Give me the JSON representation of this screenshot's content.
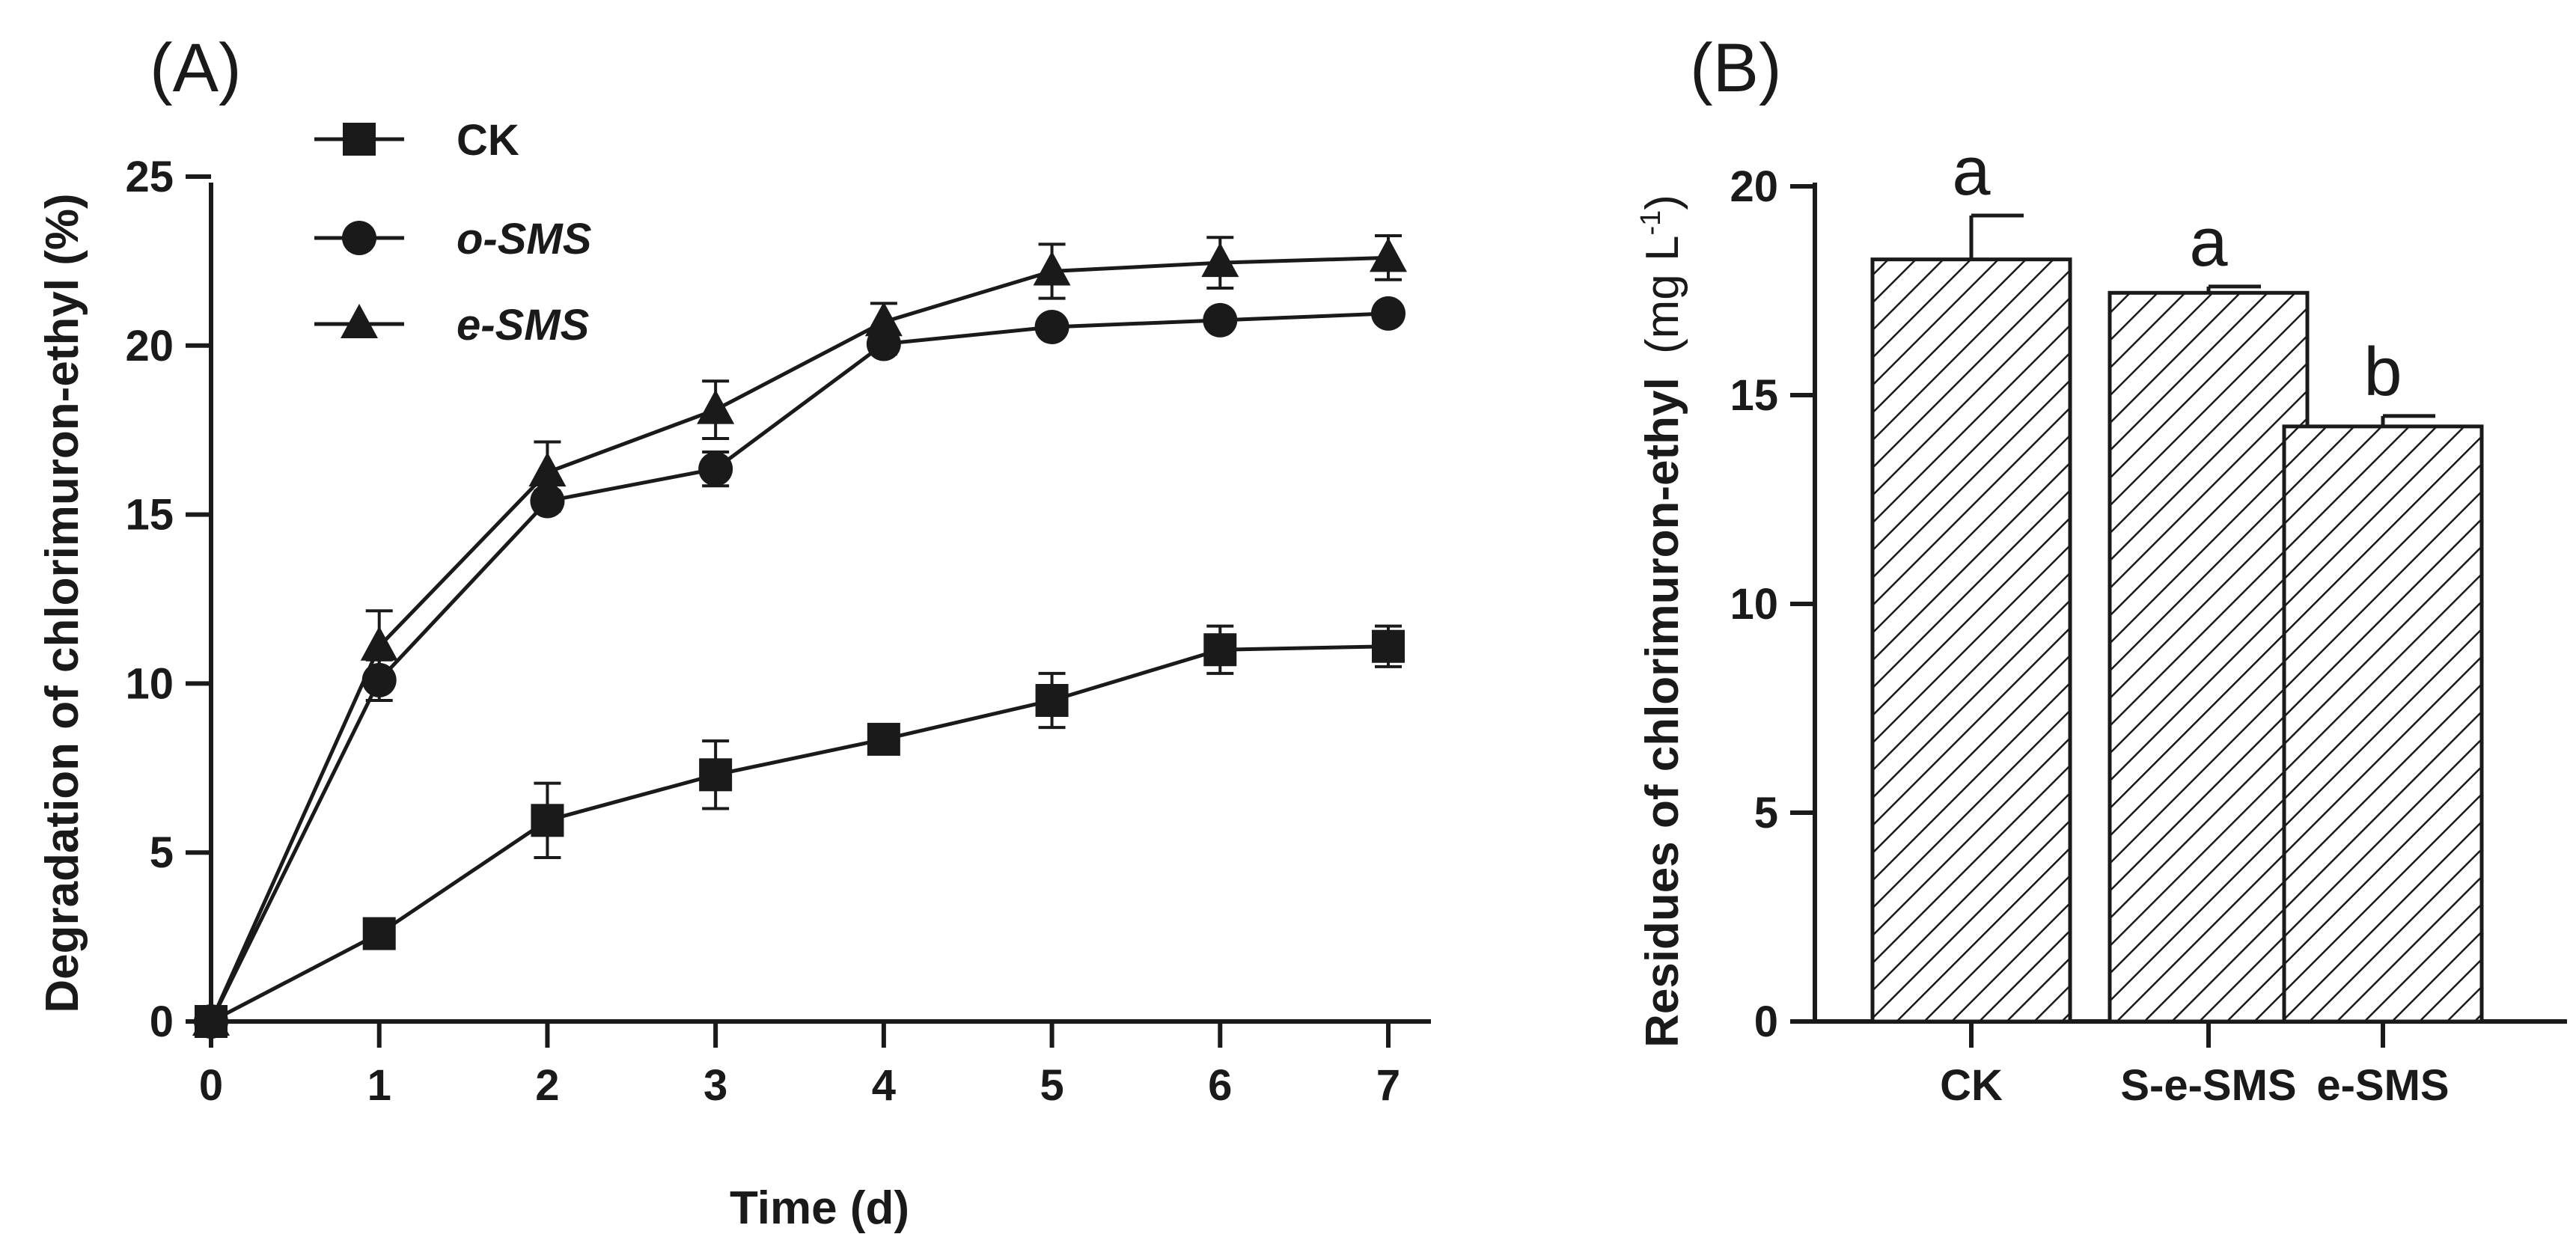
{
  "chart_data": [
    {
      "panel_label": "(A)",
      "type": "line",
      "xlabel": "Time (d)",
      "ylabel": "Degradation of chlorimuron-ethyl (%)",
      "xlim": [
        0,
        7
      ],
      "ylim": [
        0,
        25
      ],
      "x_ticks": [
        0,
        1,
        2,
        3,
        4,
        5,
        6,
        7
      ],
      "y_ticks": [
        0,
        5,
        10,
        15,
        20,
        25
      ],
      "grid": false,
      "legend_position": "top-left",
      "x": [
        0,
        1,
        2,
        3,
        4,
        5,
        6,
        7
      ],
      "series": [
        {
          "name": "CK",
          "italic": false,
          "marker": "square",
          "values": [
            0,
            2.6,
            5.95,
            7.3,
            8.35,
            9.5,
            11.0,
            11.1
          ],
          "errors": [
            0,
            0.2,
            1.1,
            1.0,
            0.3,
            0.8,
            0.7,
            0.6
          ]
        },
        {
          "name": "o-SMS",
          "italic": true,
          "marker": "circle",
          "values": [
            0,
            10.1,
            15.4,
            16.35,
            20.05,
            20.55,
            20.75,
            20.95
          ],
          "errors": [
            0,
            0.6,
            0.3,
            0.5,
            0.3,
            0.2,
            0.2,
            0.2
          ]
        },
        {
          "name": "e-SMS",
          "italic": true,
          "marker": "triangle",
          "values": [
            0,
            11.1,
            16.25,
            18.1,
            20.7,
            22.2,
            22.45,
            22.6
          ],
          "errors": [
            0,
            1.05,
            0.9,
            0.85,
            0.55,
            0.8,
            0.75,
            0.65
          ]
        }
      ]
    },
    {
      "panel_label": "(B)",
      "type": "bar",
      "xlabel": "",
      "ylabel_main": "Residues of chlorimuron-ethyl",
      "ylabel_unit_prefix": "(mg L",
      "ylabel_unit_exp": "-1",
      "ylabel_unit_suffix": ")",
      "ylim": [
        0,
        20
      ],
      "y_ticks": [
        0,
        5,
        10,
        15,
        20
      ],
      "grid": false,
      "fill": "diagonal-hatch",
      "categories": [
        "CK",
        "S-e-SMS",
        "e-SMS"
      ],
      "values": [
        18.25,
        17.45,
        14.25
      ],
      "errors": [
        1.05,
        0.15,
        0.25
      ],
      "annotations": [
        "a",
        "a",
        "b"
      ]
    }
  ]
}
